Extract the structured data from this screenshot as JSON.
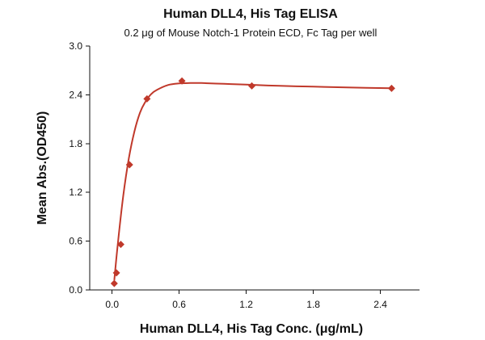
{
  "chart_data": {
    "type": "scatter",
    "title": "Human DLL4, His Tag ELISA",
    "subtitle": "0.2 μg of Mouse Notch-1 Protein ECD, Fc Tag per well",
    "xlabel": "Human DLL4, His Tag Conc. (μg/mL)",
    "ylabel": "Mean Abs.(OD450)",
    "xlim": [
      -0.2,
      2.75
    ],
    "ylim": [
      0.0,
      3.0
    ],
    "xticks": [
      0.0,
      0.6,
      1.2,
      1.8,
      2.4
    ],
    "xtick_labels": [
      "0.0",
      "0.6",
      "1.2",
      "1.8",
      "2.4"
    ],
    "yticks": [
      0.0,
      0.6,
      1.2,
      1.8,
      2.4,
      3.0
    ],
    "ytick_labels": [
      "0.0",
      "0.6",
      "1.2",
      "1.8",
      "2.4",
      "3.0"
    ],
    "grid": false,
    "colors": {
      "series": "#c0392b",
      "axis": "#111111"
    },
    "series": [
      {
        "marker": "diamond",
        "x": [
          0.0195,
          0.039,
          0.078,
          0.156,
          0.3125,
          0.625,
          1.25,
          2.5
        ],
        "y": [
          0.08,
          0.21,
          0.56,
          1.54,
          2.35,
          2.57,
          2.51,
          2.48
        ]
      }
    ],
    "fit_curve": {
      "x": [
        0.0195,
        0.05,
        0.1,
        0.15,
        0.2,
        0.25,
        0.3,
        0.35,
        0.4,
        0.5,
        0.6,
        0.7,
        0.8,
        1.0,
        1.2,
        1.5,
        1.8,
        2.1,
        2.5
      ],
      "y": [
        0.12,
        0.55,
        1.16,
        1.62,
        1.95,
        2.18,
        2.32,
        2.41,
        2.46,
        2.52,
        2.54,
        2.545,
        2.545,
        2.535,
        2.525,
        2.51,
        2.5,
        2.49,
        2.48
      ]
    }
  }
}
